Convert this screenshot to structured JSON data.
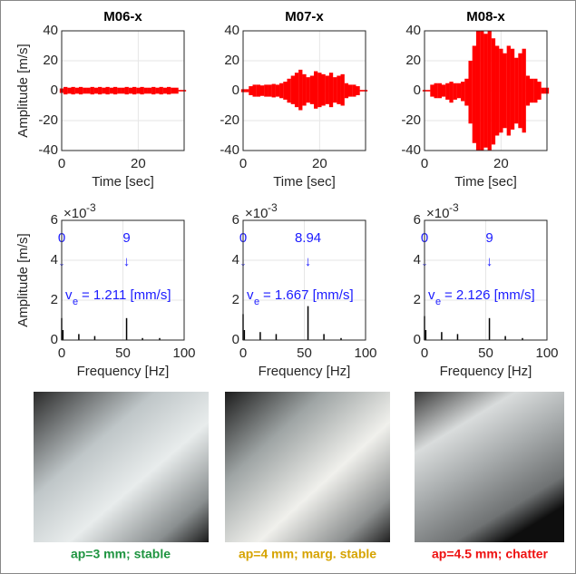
{
  "chart_data": [
    {
      "type": "signal",
      "title": "M06-x",
      "x_label": "Time [sec]",
      "y_label": "Amplitude [m/s]",
      "color": "#ff0000",
      "grid": true,
      "xlim": [
        0,
        32
      ],
      "xticks": [
        0,
        20
      ],
      "ylim": [
        -40,
        40
      ],
      "yticks": [
        -40,
        -20,
        0,
        20,
        40
      ],
      "x": [
        0,
        1,
        2,
        3,
        4,
        5,
        6,
        7,
        8,
        9,
        10,
        11,
        12,
        13,
        14,
        15,
        16,
        17,
        18,
        19,
        20,
        21,
        22,
        23,
        24,
        25,
        26,
        27,
        28,
        29,
        30,
        31,
        32
      ],
      "upper": [
        1.5,
        2.5,
        2,
        2.5,
        2,
        2.5,
        2,
        2,
        2.5,
        2,
        2.5,
        2,
        2.5,
        2,
        2.5,
        2,
        2,
        2.5,
        2,
        2.5,
        2,
        2.5,
        2,
        2,
        2.5,
        2,
        2.5,
        2,
        2.5,
        2,
        2,
        0.5,
        0.5
      ],
      "lower": [
        -1.5,
        -2.5,
        -2,
        -2.5,
        -2,
        -2.5,
        -2,
        -2,
        -2.5,
        -2,
        -2.5,
        -2,
        -2.5,
        -2,
        -2.5,
        -2,
        -2,
        -2.5,
        -2,
        -2.5,
        -2,
        -2.5,
        -2,
        -2,
        -2.5,
        -2,
        -2.5,
        -2,
        -2.5,
        -2,
        -2,
        -0.5,
        -0.5
      ]
    },
    {
      "type": "signal",
      "title": "M07-x",
      "x_label": "Time [sec]",
      "color": "#ff0000",
      "grid": true,
      "xlim": [
        0,
        32
      ],
      "xticks": [
        0,
        20
      ],
      "ylim": [
        -40,
        40
      ],
      "yticks": [
        -40,
        -20,
        0,
        20,
        40
      ],
      "x": [
        0,
        1,
        2,
        3,
        4,
        5,
        6,
        7,
        8,
        9,
        10,
        11,
        12,
        13,
        14,
        15,
        16,
        17,
        18,
        19,
        20,
        21,
        22,
        23,
        24,
        25,
        26,
        27,
        28,
        29,
        30,
        31,
        32
      ],
      "upper": [
        1,
        1,
        3,
        4,
        4,
        3.5,
        4,
        4,
        4.5,
        4,
        5,
        6,
        8,
        10,
        12,
        14,
        11,
        9,
        10,
        13,
        12,
        11,
        10,
        12,
        9,
        10,
        11,
        5,
        4,
        4,
        3,
        0.5,
        0.5
      ],
      "lower": [
        -1,
        -1,
        -3,
        -4,
        -4,
        -3.5,
        -4,
        -4,
        -4.5,
        -4,
        -5,
        -6,
        -8,
        -9,
        -11,
        -13,
        -10,
        -8,
        -9,
        -12,
        -11,
        -10,
        -9,
        -11,
        -8,
        -9,
        -10,
        -5,
        -4,
        -4,
        -3,
        -0.5,
        -0.5
      ]
    },
    {
      "type": "signal",
      "title": "M08-x",
      "x_label": "Time [sec]",
      "color": "#ff0000",
      "grid": true,
      "xlim": [
        0,
        32
      ],
      "xticks": [
        0,
        20
      ],
      "ylim": [
        -40,
        40
      ],
      "yticks": [
        -40,
        -20,
        0,
        20,
        40
      ],
      "x": [
        0,
        1,
        2,
        3,
        4,
        5,
        6,
        7,
        8,
        9,
        10,
        11,
        12,
        13,
        14,
        15,
        16,
        17,
        18,
        19,
        20,
        21,
        22,
        23,
        24,
        25,
        26,
        27,
        28,
        29,
        30,
        31,
        32
      ],
      "upper": [
        0.5,
        0.5,
        4,
        5,
        5,
        4,
        5,
        6,
        5,
        5,
        6,
        8,
        20,
        30,
        40,
        40,
        38,
        40,
        35,
        30,
        28,
        25,
        30,
        28,
        22,
        25,
        28,
        10,
        8,
        8,
        6,
        2,
        2
      ],
      "lower": [
        -0.5,
        -0.5,
        -4,
        -5,
        -5,
        -4,
        -6,
        -8,
        -6,
        -5,
        -7,
        -10,
        -22,
        -35,
        -40,
        -40,
        -38,
        -40,
        -36,
        -30,
        -28,
        -25,
        -30,
        -26,
        -22,
        -25,
        -28,
        -10,
        -8,
        -8,
        -6,
        -2,
        -2
      ]
    },
    {
      "type": "stem",
      "x_label": "Frequency [Hz]",
      "y_label": "Amplitude [m/s]",
      "y_multiplier": "×10",
      "y_exponent": "-3",
      "color": "#000000",
      "grid": true,
      "xlim": [
        0,
        100
      ],
      "xticks": [
        0,
        50,
        100
      ],
      "ylim": [
        0,
        0.006
      ],
      "yticks": [
        0,
        {
          "value": 0.002,
          "label": "2"
        },
        {
          "value": 0.004,
          "label": "4"
        },
        {
          "value": 0.006,
          "label": "6"
        }
      ],
      "x": [
        0,
        1,
        14,
        27,
        53,
        66,
        80
      ],
      "values": [
        0.0011,
        0.0005,
        0.0003,
        0.0002,
        0.0011,
        0.0001,
        0.0001
      ],
      "annotations": {
        "left_value": "0",
        "right_value": "9",
        "arrow": "↓",
        "ve_symbol": "v",
        "ve_subscript": "e",
        "ve_text": "= 1.211 [mm/s]"
      }
    },
    {
      "type": "stem",
      "x_label": "Frequency [Hz]",
      "y_multiplier": "×10",
      "y_exponent": "-3",
      "color": "#000000",
      "grid": true,
      "xlim": [
        0,
        100
      ],
      "xticks": [
        0,
        50,
        100
      ],
      "ylim": [
        0,
        0.006
      ],
      "yticks": [
        0,
        {
          "value": 0.002,
          "label": "2"
        },
        {
          "value": 0.004,
          "label": "4"
        },
        {
          "value": 0.006,
          "label": "6"
        }
      ],
      "x": [
        0,
        1,
        14,
        27,
        53,
        66,
        80
      ],
      "values": [
        0.0013,
        0.0005,
        0.0004,
        0.0003,
        0.0017,
        0.0003,
        0.0001
      ],
      "annotations": {
        "left_value": "0",
        "right_value": "8.94",
        "arrow": "↓",
        "ve_symbol": "v",
        "ve_subscript": "e",
        "ve_text": "= 1.667 [mm/s]"
      }
    },
    {
      "type": "stem",
      "x_label": "Frequency [Hz]",
      "y_multiplier": "×10",
      "y_exponent": "-3",
      "color": "#000000",
      "grid": true,
      "xlim": [
        0,
        100
      ],
      "xticks": [
        0,
        50,
        100
      ],
      "ylim": [
        0,
        0.006
      ],
      "yticks": [
        0,
        {
          "value": 0.002,
          "label": "2"
        },
        {
          "value": 0.004,
          "label": "4"
        },
        {
          "value": 0.006,
          "label": "6"
        }
      ],
      "x": [
        0,
        1,
        14,
        27,
        53,
        66,
        80
      ],
      "values": [
        0.0012,
        0.0005,
        0.0004,
        0.0003,
        0.0011,
        0.0002,
        0.0001
      ],
      "annotations": {
        "left_value": "0",
        "right_value": "9",
        "arrow": "↓",
        "ve_symbol": "v",
        "ve_subscript": "e",
        "ve_text": "= 2.126 [mm/s]"
      }
    }
  ],
  "photos": [
    {
      "caption": "ap=3 mm; stable",
      "color": "#1e9440"
    },
    {
      "caption": "ap=4 mm; marg. stable",
      "color": "#d6a300"
    },
    {
      "caption": "ap=4.5 mm; chatter",
      "color": "#ee1111"
    }
  ]
}
